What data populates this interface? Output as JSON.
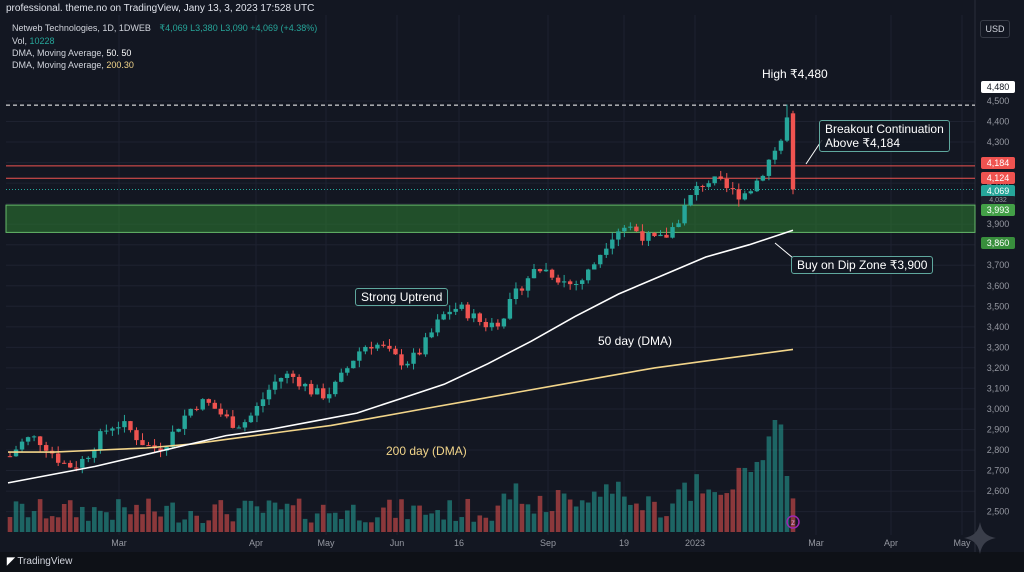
{
  "header": {
    "source_line": "professional. theme.no on TradingView, Janу 13, 3, 2023 17:528 UTC",
    "symbol_line": "Netweb Technologies, 1D, 1DWEB",
    "ohlc_line": "₹4,069  L3,380  L3,090  +4,069 (+4.38%)",
    "vol_label": "Vol,",
    "vol_value": "10228",
    "dma50_label": "DMA, Moving Average,",
    "dma50_value": "50. 50",
    "dma200_label": "DMA, Moving Average,",
    "dma200_value": "200.30"
  },
  "currency": "USD",
  "annotations": {
    "high": "High ₹4,480",
    "breakout_line1": "Breakout Continuation",
    "breakout_line2": "Above ₹4,184",
    "buy_zone": "Buy on Dip Zone ₹3,900",
    "uptrend": "Strong Uptrend",
    "dma50": "50 day (DMA)",
    "dma200": "200 day (DMA)"
  },
  "price_tags": {
    "high": "4,480",
    "resistance1": "4,184",
    "resistance2": "4,124",
    "last": "4,069",
    "small": "4,032",
    "zone_top": "3,993",
    "zone_bottom": "3,860"
  },
  "footer": {
    "brand": "TradingView"
  },
  "colors": {
    "up": "#26a69a",
    "down": "#ef5350",
    "dma50": "#ffffff",
    "dma200": "#f2d58a",
    "zone": "#2e7d32",
    "resistance": "#ef5350",
    "background": "#131722"
  },
  "chart_data": {
    "type": "candlestick",
    "title": "Netweb Technologies, 1D",
    "x_labels": [
      "Mar",
      "Apr",
      "May",
      "Jun",
      "16",
      "Sep",
      "19",
      "2023",
      "Mar",
      "Apr",
      "May"
    ],
    "y_ticks": [
      2500,
      2600,
      2700,
      2800,
      2900,
      3000,
      3100,
      3200,
      3300,
      3400,
      3500,
      3600,
      3700,
      3800,
      3900,
      4000,
      4100,
      4200,
      4300,
      4400,
      4500
    ],
    "y_tick_labels": [
      "2,500",
      "2,600",
      "2,700",
      "2,800",
      "2,900",
      "3,000",
      "3,100",
      "3,200",
      "3,300",
      "3,400",
      "3,500",
      "3,600",
      "3,700",
      "3,800",
      "3,900",
      "4,000",
      "4,100",
      "4,200",
      "4,300",
      "4,400",
      "4,500"
    ],
    "ylim": [
      2450,
      4560
    ],
    "levels": {
      "high": 4480,
      "resistance1": 4184,
      "resistance2": 4124,
      "last": 4069,
      "zone_top": 3993,
      "zone_bottom": 3860
    },
    "dma50": [
      2640,
      2680,
      2720,
      2770,
      2820,
      2870,
      2900,
      2940,
      2980,
      3050,
      3120,
      3220,
      3330,
      3450,
      3560,
      3650,
      3740,
      3800,
      3870
    ],
    "dma200": [
      2790,
      2790,
      2800,
      2810,
      2830,
      2860,
      2890,
      2920,
      2960,
      3000,
      3040,
      3080,
      3120,
      3160,
      3200,
      3230,
      3260,
      3290
    ],
    "volume_max": 100,
    "grid": true
  }
}
